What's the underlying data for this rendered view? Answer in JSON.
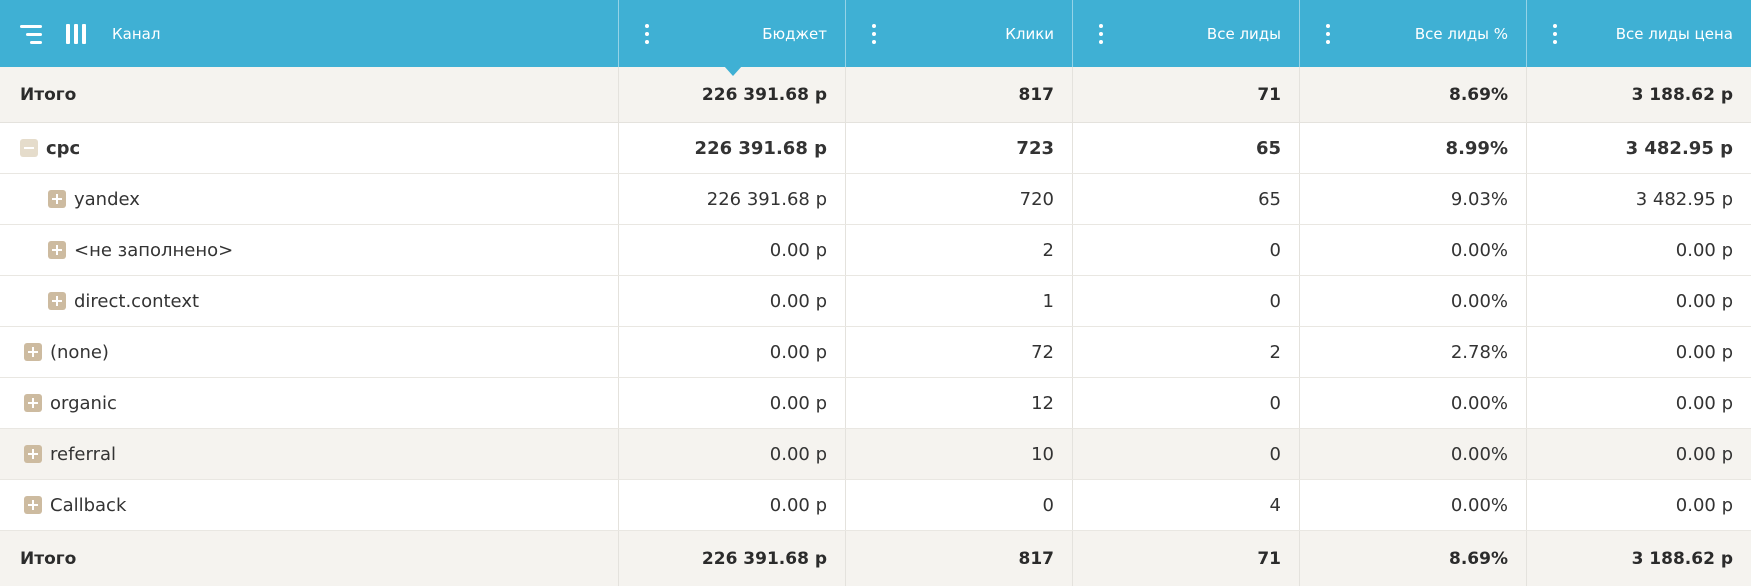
{
  "header": {
    "channel_label": "Канал",
    "columns": [
      "Бюджет",
      "Клики",
      "Все лиды",
      "Все лиды %",
      "Все лиды цена"
    ]
  },
  "total_top": {
    "label": "Итого",
    "budget": "226 391.68 р",
    "clicks": "817",
    "leads": "71",
    "leads_pct": "8.69%",
    "lead_price": "3 188.62 р"
  },
  "rows": [
    {
      "name": "cpc",
      "level": 0,
      "state": "expanded",
      "budget": "226 391.68 р",
      "clicks": "723",
      "leads": "65",
      "leads_pct": "8.99%",
      "lead_price": "3 482.95 р"
    },
    {
      "name": "yandex",
      "level": 1,
      "state": "collapsed",
      "budget": "226 391.68 р",
      "clicks": "720",
      "leads": "65",
      "leads_pct": "9.03%",
      "lead_price": "3 482.95 р"
    },
    {
      "name": "<не заполнено>",
      "level": 1,
      "state": "collapsed",
      "budget": "0.00 р",
      "clicks": "2",
      "leads": "0",
      "leads_pct": "0.00%",
      "lead_price": "0.00 р"
    },
    {
      "name": "direct.context",
      "level": 1,
      "state": "collapsed",
      "budget": "0.00 р",
      "clicks": "1",
      "leads": "0",
      "leads_pct": "0.00%",
      "lead_price": "0.00 р"
    },
    {
      "name": "(none)",
      "level": 0,
      "state": "collapsed",
      "budget": "0.00 р",
      "clicks": "72",
      "leads": "2",
      "leads_pct": "2.78%",
      "lead_price": "0.00 р"
    },
    {
      "name": "organic",
      "level": 0,
      "state": "collapsed",
      "budget": "0.00 р",
      "clicks": "12",
      "leads": "0",
      "leads_pct": "0.00%",
      "lead_price": "0.00 р"
    },
    {
      "name": "referral",
      "level": 0,
      "state": "collapsed",
      "budget": "0.00 р",
      "clicks": "10",
      "leads": "0",
      "leads_pct": "0.00%",
      "lead_price": "0.00 р"
    },
    {
      "name": "Callback",
      "level": 0,
      "state": "collapsed",
      "budget": "0.00 р",
      "clicks": "0",
      "leads": "4",
      "leads_pct": "0.00%",
      "lead_price": "0.00 р"
    }
  ],
  "total_bottom": {
    "label": "Итого",
    "budget": "226 391.68 р",
    "clicks": "817",
    "leads": "71",
    "leads_pct": "8.69%",
    "lead_price": "3 188.62 р"
  },
  "icons": {
    "menu": "hamburger-icon",
    "columns": "columns-icon",
    "column_menu": "vertical-dots-icon",
    "sort": "sort-caret-icon",
    "expand": "plus-box-icon",
    "collapse": "minus-box-icon"
  },
  "colors": {
    "header_bg": "#3fb0d4",
    "total_bg": "#f5f3ef",
    "expander": "#cdbba0"
  }
}
